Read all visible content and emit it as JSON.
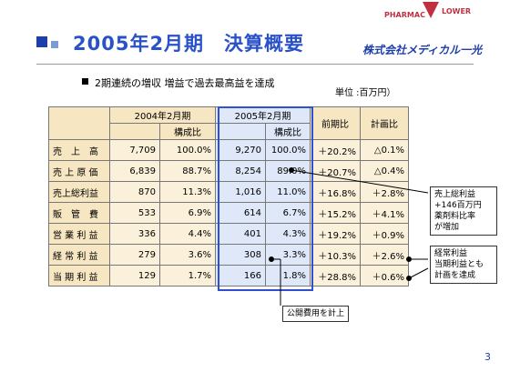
{
  "header": {
    "title": "2005年2月期　決算概要",
    "logo_top": "PHARMAC",
    "logo_right": "LOWER",
    "company": "株式会社メディカル一光"
  },
  "summary": "2期連続の増収 増益で過去最高益を達成",
  "unit": "単位 :百万円）",
  "table": {
    "group_headers": [
      "2004年2月期",
      "2005年2月期",
      "前期比",
      "計画比"
    ],
    "sub_headers": [
      "構成比",
      "構成比"
    ],
    "rows": [
      [
        "売　上　高",
        "7,709",
        "100.0%",
        "9,270",
        "100.0%",
        "＋20.2%",
        "△0.1%"
      ],
      [
        "売 上 原 価",
        "6,839",
        "88.7%",
        "8,254",
        "89.0%",
        "＋20.7%",
        "△0.4%"
      ],
      [
        "売上総利益",
        "870",
        "11.3%",
        "1,016",
        "11.0%",
        "＋16.8%",
        "＋2.8%"
      ],
      [
        "販　管　費",
        "533",
        "6.9%",
        "614",
        "6.7%",
        "＋15.2%",
        "＋4.1%"
      ],
      [
        "営 業 利 益",
        "336",
        "4.4%",
        "401",
        "4.3%",
        "＋19.2%",
        "＋0.9%"
      ],
      [
        "経 常 利 益",
        "279",
        "3.6%",
        "308",
        "3.3%",
        "＋10.3%",
        "＋2.6%"
      ],
      [
        "当 期 利 益",
        "129",
        "1.7%",
        "166",
        "1.8%",
        "＋28.8%",
        "＋0.6%"
      ]
    ]
  },
  "callouts": [
    [
      "売上総利益",
      "+146百万円",
      "薬剤料比率",
      "が増加"
    ],
    [
      "経常利益",
      "当期利益とも",
      "計画を達成"
    ],
    [
      "公開費用を計上"
    ]
  ],
  "page_number": "3"
}
